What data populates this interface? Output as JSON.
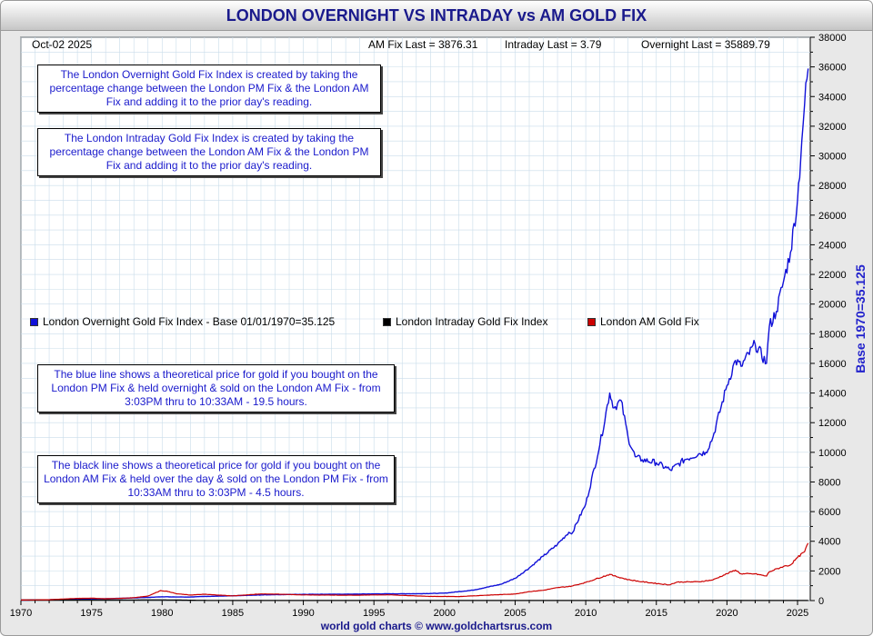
{
  "header": {
    "title": "LONDON OVERNIGHT VS INTRADAY vs AM GOLD FIX",
    "date": "Oct-02  2025",
    "am_fix_last": "AM Fix Last = 3876.31",
    "intraday_last": "Intraday Last = 3.79",
    "overnight_last": "Overnight Last = 35889.79"
  },
  "notes": {
    "overnight_def": "The London Overnight Gold Fix Index is created by taking the percentage change between the London PM Fix & the London AM Fix and adding it to the prior day's reading.",
    "intraday_def": "The London Intraday Gold Fix Index is created by taking the percentage change between the London AM Fix & the London PM Fix and adding it to the prior day's reading.",
    "blue_line": "The blue line shows a theoretical price for gold if you bought on the London PM Fix & held overnight & sold on the London AM Fix - from 3:03PM thru to 10:33AM - 19.5 hours.",
    "black_line": "The black line shows a theoretical price for gold if you bought on the London AM Fix & held over the day & sold on the London PM Fix - from 10:33AM thru to 3:03PM - 4.5 hours."
  },
  "footer": "world gold charts © www.goldchartsrus.com",
  "colors": {
    "overnight": "#1010d8",
    "intraday": "#000000",
    "am_fix": "#cc0000",
    "grid": "#c9dcea",
    "plot_bg": "#ffffff",
    "title": "#1a1a8c",
    "note_text": "#1a1acc"
  },
  "chart_data": {
    "type": "line",
    "title": "LONDON OVERNIGHT VS INTRADAY vs AM GOLD FIX",
    "xlabel": "",
    "ylabel": "Base 1970=35.125",
    "xlim": [
      1970,
      2025.9
    ],
    "ylim": [
      0,
      38000
    ],
    "x_ticks": [
      "1970",
      "1975",
      "1980",
      "1985",
      "1990",
      "1995",
      "2000",
      "2005",
      "2010",
      "2015",
      "2020",
      "2025"
    ],
    "y_ticks": [
      "0",
      "2000",
      "4000",
      "6000",
      "8000",
      "10000",
      "12000",
      "14000",
      "16000",
      "18000",
      "20000",
      "22000",
      "24000",
      "26000",
      "28000",
      "30000",
      "32000",
      "34000",
      "36000",
      "38000"
    ],
    "grid": true,
    "legend_position": "middle-left",
    "series": [
      {
        "name": "London Overnight Gold Fix Index - Base 01/01/1970=35.125",
        "color": "#1010d8",
        "x": [
          1970,
          1972,
          1974,
          1976,
          1978,
          1979.5,
          1980,
          1981,
          1982,
          1983,
          1985,
          1987,
          1988,
          1990,
          1993,
          1995,
          1998,
          2000,
          2002,
          2004,
          2005,
          2006,
          2007,
          2008,
          2008.8,
          2009,
          2010,
          2011,
          2011.7,
          2012,
          2012.5,
          2013,
          2013.5,
          2014,
          2015,
          2016,
          2017,
          2018,
          2018.5,
          2019,
          2020,
          2020.6,
          2021,
          2022,
          2022.8,
          2023,
          2023.5,
          2024,
          2024.5,
          2025,
          2025.3,
          2025.5,
          2025.75
        ],
        "values": [
          35,
          50,
          100,
          120,
          180,
          230,
          260,
          240,
          240,
          280,
          320,
          380,
          400,
          420,
          430,
          450,
          460,
          500,
          700,
          1100,
          1500,
          2200,
          3000,
          3800,
          4600,
          4500,
          6500,
          10500,
          14000,
          13000,
          13500,
          11000,
          9700,
          9500,
          9300,
          8800,
          9500,
          9900,
          10000,
          11000,
          14500,
          16200,
          15800,
          17300,
          16000,
          18500,
          19500,
          21500,
          23500,
          27000,
          31000,
          33500,
          35890
        ]
      },
      {
        "name": "London Intraday Gold Fix Index",
        "color": "#000000",
        "x": [
          1970,
          1972,
          1974,
          1976,
          1978,
          1980,
          1982,
          1983.5,
          1984,
          1986,
          1990,
          1995,
          2000,
          2005,
          2010,
          2015,
          2020,
          2025.75
        ],
        "values": [
          35,
          36,
          40,
          42,
          45,
          50,
          25,
          12,
          10,
          8,
          7,
          6,
          5.5,
          5,
          4.5,
          4.2,
          4,
          3.79
        ]
      },
      {
        "name": "London AM Gold Fix",
        "color": "#cc0000",
        "x": [
          1970,
          1972,
          1974,
          1975,
          1976,
          1977,
          1978,
          1979,
          1979.9,
          1980.5,
          1981,
          1982,
          1983,
          1985,
          1987,
          1988,
          1990,
          1993,
          1996,
          1999,
          2001,
          2003,
          2005,
          2006,
          2007,
          2008,
          2009,
          2010,
          2011.7,
          2012,
          2013,
          2014,
          2015.9,
          2016.5,
          2017,
          2018,
          2019,
          2020.6,
          2021,
          2022,
          2022.8,
          2023,
          2024,
          2024.5,
          2025,
          2025.5,
          2025.75
        ],
        "values": [
          35,
          58,
          150,
          160,
          125,
          148,
          193,
          306,
          675,
          600,
          460,
          375,
          424,
          317,
          446,
          437,
          383,
          360,
          388,
          279,
          271,
          363,
          444,
          604,
          695,
          872,
          972,
          1225,
          1770,
          1669,
          1411,
          1266,
          1060,
          1250,
          1257,
          1268,
          1393,
          2060,
          1800,
          1800,
          1650,
          1940,
          2300,
          2400,
          2900,
          3300,
          3876
        ]
      }
    ]
  }
}
